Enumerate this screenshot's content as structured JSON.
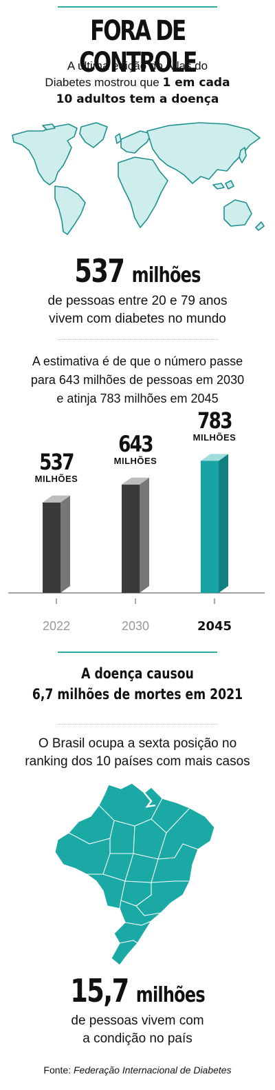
{
  "title": "FORA DE CONTROLE",
  "intro": {
    "line1": "A última edição do Atlas do",
    "line2_plain": "Diabetes mostrou que ",
    "line2_bold": "1 em cada",
    "line3_bold": "10 adultos tem a doença"
  },
  "stat_world": {
    "number": "537",
    "unit": "milhões",
    "line1": "de pessoas entre 20 e 79 anos",
    "line2": "vivem com diabetes no mundo"
  },
  "estimate": {
    "line1": "A estimativa é de que o número passe",
    "line2": "para 643 milhões de pessoas em 2030",
    "line3": "e atinja 783 milhões em 2045"
  },
  "chart_data": {
    "type": "bar",
    "categories": [
      "2022",
      "2030",
      "2045"
    ],
    "values": [
      537,
      643,
      783
    ],
    "value_labels": [
      "537",
      "643",
      "783"
    ],
    "value_unit": "MILHÕES",
    "highlight_category": "2045",
    "colors": {
      "gray_front": "#3a3a3a",
      "gray_side": "#777777",
      "gray_top": "#bdbdbd",
      "teal_front": "#1aa3a5",
      "teal_side": "#137f81",
      "teal_top": "#9fdcdc"
    }
  },
  "deaths": {
    "line1": "A doença causou",
    "line2": "6,7 milhões de mortes em 2021"
  },
  "brazil_rank": {
    "line1": "O Brasil ocupa a sexta posição no",
    "line2": "ranking dos 10 países com mais casos"
  },
  "stat_brazil": {
    "number": "15,7",
    "unit": "milhões",
    "line1": "de pessoas vivem com",
    "line2": "a condição no país"
  },
  "source": {
    "label": "Fonte: ",
    "name": "Federação Internacional de Diabetes"
  },
  "colors": {
    "accent": "#2aa9a8",
    "map_fill": "#cdeeed",
    "map_stroke": "#1f8f8e",
    "brazil_fill": "#1aa9a4"
  }
}
